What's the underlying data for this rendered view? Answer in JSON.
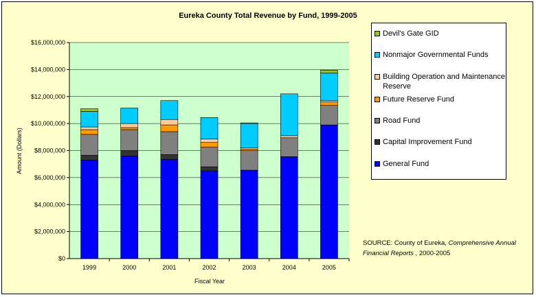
{
  "chart_data": {
    "type": "bar",
    "stacked": true,
    "title": "Eureka County Total Revenue by Fund, 1999-2005",
    "xlabel": "Fiscal Year",
    "ylabel": "Amount (Dollars)",
    "ylim": [
      0,
      16000000
    ],
    "ytick_values": [
      0,
      2000000,
      4000000,
      6000000,
      8000000,
      10000000,
      12000000,
      14000000,
      16000000
    ],
    "ytick_labels": [
      "$0",
      "$2,000,000",
      "$4,000,000",
      "$6,000,000",
      "$8,000,000",
      "$10,000,000",
      "$12,000,000",
      "$14,000,000",
      "$16,000,000"
    ],
    "categories": [
      "1999",
      "2000",
      "2001",
      "2002",
      "2003",
      "2004",
      "2005"
    ],
    "series": [
      {
        "name": "General Fund",
        "color": "#0000ff",
        "values": [
          7300000,
          7600000,
          7350000,
          6500000,
          6550000,
          7550000,
          9900000
        ]
      },
      {
        "name": "Capital Improvement Fund",
        "color": "#333333",
        "values": [
          350000,
          400000,
          350000,
          300000,
          0,
          0,
          0
        ]
      },
      {
        "name": "Road Fund",
        "color": "#808080",
        "values": [
          1550000,
          1550000,
          1700000,
          1450000,
          1450000,
          1400000,
          1450000
        ]
      },
      {
        "name": "Future Reserve Fund",
        "color": "#ff9900",
        "values": [
          350000,
          150000,
          500000,
          350000,
          100000,
          0,
          250000
        ]
      },
      {
        "name": "Building Operation and Maintenance Reserve",
        "color": "#ffcc99",
        "values": [
          200000,
          300000,
          400000,
          250000,
          100000,
          150000,
          100000
        ]
      },
      {
        "name": "Nonmajor Governmental Funds",
        "color": "#00ccff",
        "values": [
          1150000,
          1150000,
          1400000,
          1600000,
          1800000,
          3100000,
          2050000
        ]
      },
      {
        "name": "Devil's Gate GID",
        "color": "#99cc00",
        "values": [
          200000,
          0,
          0,
          0,
          50000,
          0,
          200000
        ]
      }
    ],
    "legend_position": "right",
    "legend_order": [
      "Devil's Gate GID",
      "Nonmajor Governmental Funds",
      "Building Operation and Maintenance Reserve",
      "Future Reserve Fund",
      "Road Fund",
      "Capital Improvement Fund",
      "General Fund"
    ],
    "plot_background": "#ccffcc",
    "chart_background": "#ffffcc",
    "grid": true
  },
  "source_note": {
    "prefix": "SOURCE: County of Eureka, ",
    "italic": "Comprehensive Annual Financial Reports",
    "suffix": " , 2000-2005"
  }
}
